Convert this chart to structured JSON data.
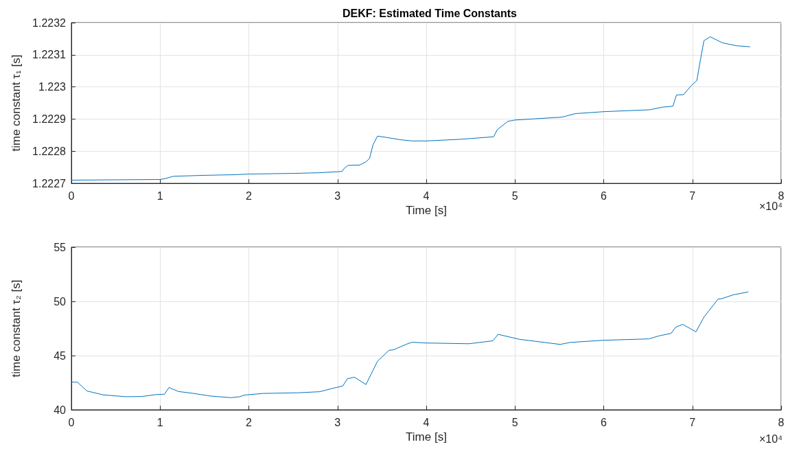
{
  "chart_data": [
    {
      "type": "line",
      "title": "DEKF: Estimated Time Constants",
      "xlabel": "Time [s]",
      "ylabel": "time constant τ₁ [s]",
      "annotations": [
        "×10⁴"
      ],
      "xlim": [
        0,
        8
      ],
      "xticks": [
        0,
        1,
        2,
        3,
        4,
        5,
        6,
        7,
        8
      ],
      "ylim": [
        1.2227,
        1.2232
      ],
      "yticks": [
        1.2227,
        1.2228,
        1.2229,
        1.223,
        1.2231,
        1.2232
      ],
      "grid": true,
      "series": [
        {
          "color": "#0072bd",
          "x": [
            0,
            1,
            1.06,
            1.15,
            1.5,
            1.85,
            2,
            2.5,
            2.8,
            3.05,
            3.08,
            3.12,
            3.25,
            3.32,
            3.36,
            3.4,
            3.45,
            3.55,
            3.7,
            3.84,
            4,
            4.38,
            4.76,
            4.8,
            4.92,
            5,
            5.53,
            5.68,
            6,
            6.52,
            6.66,
            6.78,
            6.82,
            6.9,
            6.99,
            7.05,
            7.09,
            7.13,
            7.2,
            7.34,
            7.5,
            7.65
          ],
          "values": [
            1.22271,
            1.222712,
            1.222715,
            1.222722,
            1.222725,
            1.222727,
            1.222729,
            1.222731,
            1.222733,
            1.222737,
            1.222748,
            1.222756,
            1.222757,
            1.222767,
            1.222777,
            1.22282,
            1.222847,
            1.222843,
            1.222836,
            1.222832,
            1.222832,
            1.222837,
            1.222845,
            1.222867,
            1.222893,
            1.222897,
            1.222906,
            1.222917,
            1.222923,
            1.222929,
            1.222937,
            1.22294,
            1.222975,
            1.222976,
            1.223005,
            1.22302,
            1.223084,
            1.223144,
            1.223156,
            1.223137,
            1.223128,
            1.223125
          ]
        }
      ]
    },
    {
      "type": "line",
      "xlabel": "Time [s]",
      "ylabel": "time constant τ₂ [s]",
      "annotations": [
        "×10⁴"
      ],
      "xlim": [
        0,
        8
      ],
      "xticks": [
        0,
        1,
        2,
        3,
        4,
        5,
        6,
        7,
        8
      ],
      "ylim": [
        40,
        55
      ],
      "yticks": [
        40,
        45,
        50,
        55
      ],
      "grid": true,
      "series": [
        {
          "color": "#0072bd",
          "x": [
            0,
            0.067,
            0.175,
            0.356,
            0.613,
            0.794,
            0.948,
            1.05,
            1.1,
            1.206,
            1.36,
            1.567,
            1.799,
            1.9,
            1.95,
            2.16,
            2.55,
            2.8,
            2.93,
            3.06,
            3.11,
            3.19,
            3.32,
            3.45,
            3.58,
            3.63,
            3.78,
            3.84,
            4,
            4.48,
            4.75,
            4.81,
            5.05,
            5.51,
            5.62,
            5.99,
            6.51,
            6.62,
            6.76,
            6.81,
            6.89,
            7.04,
            7.13,
            7.29,
            7.32,
            7.46,
            7.63
          ],
          "values": [
            42.55,
            42.55,
            41.74,
            41.38,
            41.21,
            41.23,
            41.4,
            41.44,
            42.06,
            41.69,
            41.53,
            41.27,
            41.12,
            41.21,
            41.36,
            41.51,
            41.57,
            41.67,
            41.95,
            42.2,
            42.86,
            43.01,
            42.33,
            44.47,
            45.49,
            45.53,
            46.06,
            46.23,
            46.16,
            46.09,
            46.36,
            46.96,
            46.5,
            46.03,
            46.21,
            46.41,
            46.54,
            46.81,
            47.05,
            47.61,
            47.88,
            47.19,
            48.55,
            50.22,
            50.22,
            50.6,
            50.87
          ]
        }
      ]
    }
  ]
}
